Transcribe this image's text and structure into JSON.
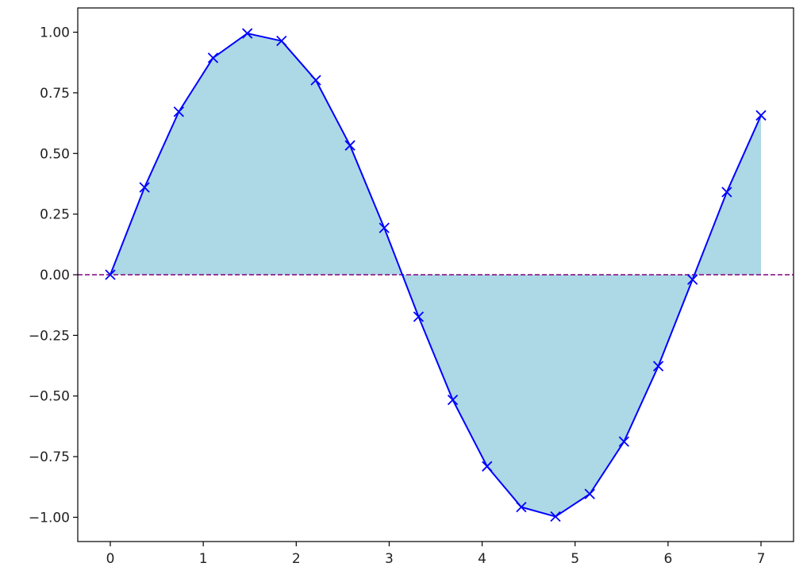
{
  "chart_data": {
    "type": "line",
    "title": "",
    "xlabel": "",
    "ylabel": "",
    "xlim": [
      -0.35,
      7.35
    ],
    "ylim": [
      -1.1,
      1.1
    ],
    "x_ticks": [
      0,
      1,
      2,
      3,
      4,
      5,
      6,
      7
    ],
    "x_tick_labels": [
      "0",
      "1",
      "2",
      "3",
      "4",
      "5",
      "6",
      "7"
    ],
    "y_ticks": [
      1.0,
      0.75,
      0.5,
      0.25,
      0.0,
      -0.25,
      -0.5,
      -0.75,
      -1.0
    ],
    "y_tick_labels": [
      "1.00",
      "0.75",
      "0.50",
      "0.25",
      "0.00",
      "−0.25",
      "−0.50",
      "−0.75",
      "−1.00"
    ],
    "grid": false,
    "series": [
      {
        "color": "#0000ff",
        "marker": "x",
        "fill_to_zero_color": "#add8e6",
        "x": [
          0,
          0.368,
          0.737,
          1.105,
          1.474,
          1.842,
          2.211,
          2.579,
          2.947,
          3.316,
          3.684,
          4.053,
          4.421,
          4.789,
          5.158,
          5.526,
          5.895,
          6.263,
          6.632,
          7.0
        ],
        "y": [
          0.0,
          0.36,
          0.672,
          0.894,
          0.995,
          0.964,
          0.802,
          0.533,
          0.193,
          -0.173,
          -0.516,
          -0.79,
          -0.958,
          -0.997,
          -0.904,
          -0.688,
          -0.377,
          -0.02,
          0.341,
          0.657
        ]
      }
    ],
    "reference_lines": [
      {
        "y": 0.0,
        "color": "#800080",
        "style": "dashed"
      }
    ]
  }
}
